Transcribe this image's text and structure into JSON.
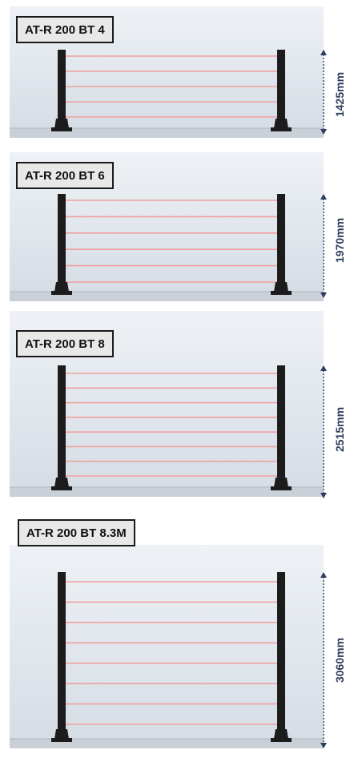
{
  "colors": {
    "beam": "#f0a0a0",
    "post": "#1c1c1c",
    "wall_top": "#eef2f6",
    "wall_bottom": "#d6dde5",
    "floor": "#c9d0d8",
    "dimension_line": "#2d3e5c",
    "label_background": "#e8e8e8",
    "label_border": "#1a1a1a"
  },
  "panels": [
    {
      "model": "AT-R 200 BT 4",
      "height": "1425mm",
      "beam_count": 5
    },
    {
      "model": "AT-R 200 BT 6",
      "height": "1970mm",
      "beam_count": 6
    },
    {
      "model": "AT-R 200 BT 8",
      "height": "2515mm",
      "beam_count": 8
    },
    {
      "model": "AT-R 200 BT 8.3M",
      "height": "3060mm",
      "beam_count": 8
    }
  ]
}
